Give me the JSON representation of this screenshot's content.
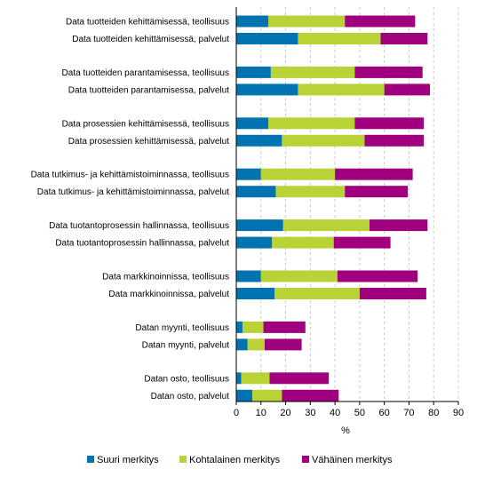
{
  "chart_data": {
    "type": "bar",
    "orientation": "horizontal",
    "stacked": true,
    "title": "",
    "xlabel": "%",
    "ylabel": "",
    "xlim": [
      0,
      90
    ],
    "xticks": [
      0,
      10,
      20,
      30,
      40,
      50,
      60,
      70,
      80,
      90
    ],
    "grid": true,
    "legend_position": "bottom",
    "categories": [
      "Data tuotteiden kehittämisessä, teollisuus",
      "Data tuotteiden kehittämisessä, palvelut",
      "Data tuotteiden parantamisessa, teollisuus",
      "Data tuotteiden parantamisessa, palvelut",
      "Data prosessien kehittämisessä, teollisuus",
      "Data prosessien kehittämisessä, palvelut",
      "Data tutkimus- ja kehittämistoiminnassa, teollisuus",
      "Data tutkimus- ja kehittämistoiminnassa, palvelut",
      "Data tuotantoprosessin hallinnassa, teollisuus",
      "Data tuotantoprosessin hallinnassa, palvelut",
      "Data markkinoinnissa, teollisuus",
      "Data markkinoinnissa, palvelut",
      "Datan myynti, teollisuus",
      "Datan myynti, palvelut",
      "Datan osto, teollisuus",
      "Datan osto, palvelut"
    ],
    "series": [
      {
        "name": "Suuri merkitys",
        "color": "#0073b0",
        "values": [
          13,
          25,
          14,
          25,
          13,
          18.5,
          10,
          16,
          19,
          14.5,
          10,
          15.5,
          2.5,
          4.5,
          2,
          6.5
        ]
      },
      {
        "name": "Kohtalainen merkitys",
        "color": "#b9d235",
        "values": [
          31,
          33.5,
          34,
          35,
          35,
          33.5,
          30,
          28,
          35,
          25,
          31,
          34.5,
          8.5,
          7,
          11.5,
          12
        ]
      },
      {
        "name": "Vähäinen merkitys",
        "color": "#a0007d",
        "values": [
          28.5,
          19,
          27.5,
          18.5,
          28,
          24,
          31.5,
          25.5,
          23.5,
          23,
          32.5,
          27,
          17,
          15,
          24,
          23
        ]
      }
    ]
  }
}
